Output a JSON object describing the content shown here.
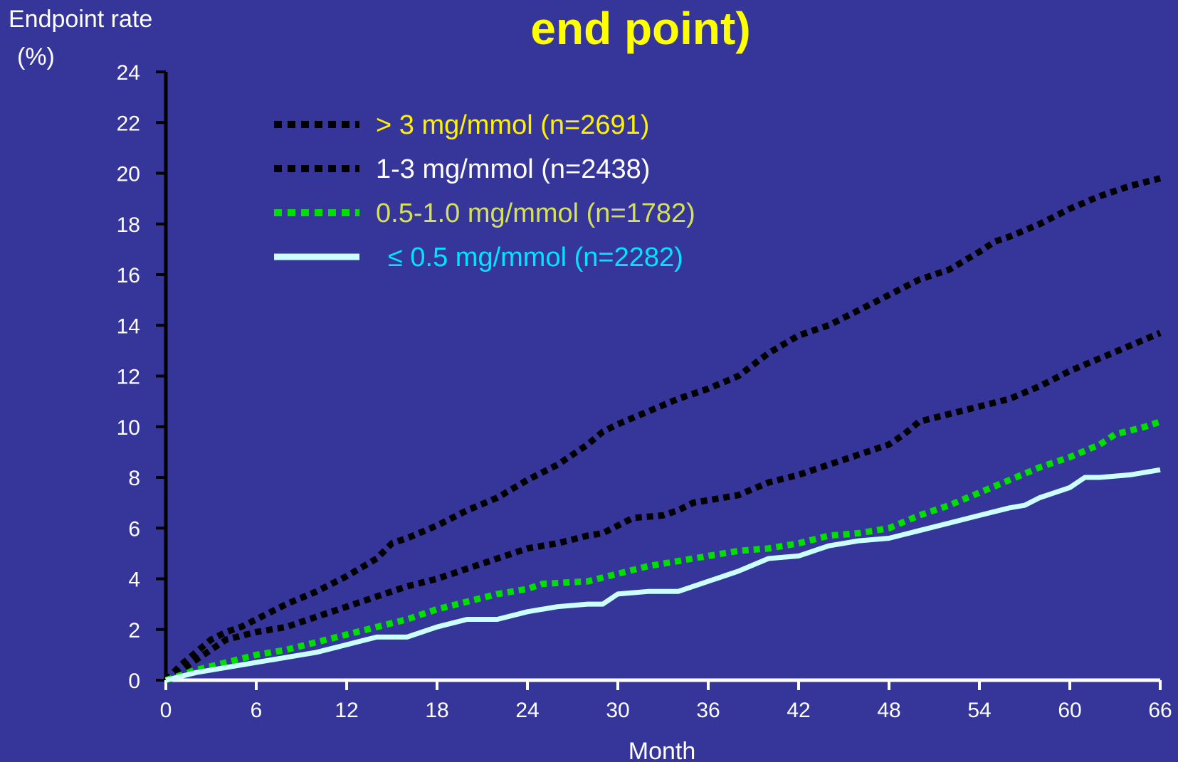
{
  "chart_data": {
    "type": "line",
    "title": "end point)",
    "ylabel_line1": "Endpoint rate",
    "ylabel_line2": "(%)",
    "xlabel": "Month",
    "xlim": [
      0,
      66
    ],
    "ylim": [
      0,
      24
    ],
    "x_ticks": [
      0,
      6,
      12,
      18,
      24,
      30,
      36,
      42,
      48,
      54,
      60,
      66
    ],
    "y_ticks": [
      0,
      2,
      4,
      6,
      8,
      10,
      12,
      14,
      16,
      18,
      20,
      22,
      24
    ],
    "grid": false,
    "legend_position": "top-left",
    "series": [
      {
        "name": "> 3 mg/mmol (n=2691)",
        "color": "#000000",
        "label_color": "#FFF200",
        "style": "dotted",
        "points": [
          [
            0,
            0
          ],
          [
            1,
            0.6
          ],
          [
            2,
            1.1
          ],
          [
            3,
            1.6
          ],
          [
            4,
            1.9
          ],
          [
            5,
            2.1
          ],
          [
            6,
            2.4
          ],
          [
            8,
            3.0
          ],
          [
            10,
            3.5
          ],
          [
            12,
            4.1
          ],
          [
            14,
            4.8
          ],
          [
            15,
            5.4
          ],
          [
            16,
            5.6
          ],
          [
            18,
            6.1
          ],
          [
            20,
            6.7
          ],
          [
            22,
            7.2
          ],
          [
            24,
            7.9
          ],
          [
            26,
            8.5
          ],
          [
            28,
            9.3
          ],
          [
            29,
            9.8
          ],
          [
            30,
            10.1
          ],
          [
            32,
            10.6
          ],
          [
            34,
            11.1
          ],
          [
            36,
            11.5
          ],
          [
            38,
            12.0
          ],
          [
            40,
            12.9
          ],
          [
            42,
            13.6
          ],
          [
            44,
            14.0
          ],
          [
            46,
            14.6
          ],
          [
            48,
            15.2
          ],
          [
            50,
            15.8
          ],
          [
            52,
            16.2
          ],
          [
            54,
            16.9
          ],
          [
            55,
            17.3
          ],
          [
            56,
            17.5
          ],
          [
            58,
            18.0
          ],
          [
            60,
            18.6
          ],
          [
            62,
            19.1
          ],
          [
            64,
            19.5
          ],
          [
            66,
            19.8
          ]
        ]
      },
      {
        "name": "1-3 mg/mmol (n=2438)",
        "color": "#000000",
        "label_color": "#FFFFFF",
        "style": "dotted",
        "points": [
          [
            0,
            0
          ],
          [
            2,
            0.8
          ],
          [
            4,
            1.6
          ],
          [
            6,
            1.9
          ],
          [
            8,
            2.1
          ],
          [
            10,
            2.5
          ],
          [
            12,
            2.9
          ],
          [
            14,
            3.3
          ],
          [
            16,
            3.7
          ],
          [
            18,
            4.0
          ],
          [
            20,
            4.4
          ],
          [
            22,
            4.8
          ],
          [
            24,
            5.2
          ],
          [
            26,
            5.4
          ],
          [
            28,
            5.7
          ],
          [
            29,
            5.8
          ],
          [
            30,
            6.1
          ],
          [
            31,
            6.4
          ],
          [
            33,
            6.5
          ],
          [
            34,
            6.7
          ],
          [
            35,
            7.0
          ],
          [
            36,
            7.1
          ],
          [
            38,
            7.3
          ],
          [
            40,
            7.8
          ],
          [
            42,
            8.1
          ],
          [
            44,
            8.5
          ],
          [
            46,
            8.9
          ],
          [
            48,
            9.3
          ],
          [
            49,
            9.7
          ],
          [
            50,
            10.2
          ],
          [
            52,
            10.5
          ],
          [
            54,
            10.8
          ],
          [
            56,
            11.1
          ],
          [
            58,
            11.6
          ],
          [
            60,
            12.2
          ],
          [
            62,
            12.7
          ],
          [
            64,
            13.2
          ],
          [
            66,
            13.7
          ]
        ]
      },
      {
        "name": "0.5-1.0 mg/mmol (n=1782)",
        "color": "#00E000",
        "label_color": "#D4E157",
        "style": "dotted",
        "points": [
          [
            0,
            0
          ],
          [
            2,
            0.4
          ],
          [
            4,
            0.7
          ],
          [
            6,
            1.0
          ],
          [
            8,
            1.2
          ],
          [
            10,
            1.5
          ],
          [
            12,
            1.8
          ],
          [
            14,
            2.1
          ],
          [
            16,
            2.4
          ],
          [
            18,
            2.8
          ],
          [
            20,
            3.1
          ],
          [
            22,
            3.4
          ],
          [
            24,
            3.6
          ],
          [
            25,
            3.8
          ],
          [
            28,
            3.9
          ],
          [
            30,
            4.2
          ],
          [
            32,
            4.5
          ],
          [
            34,
            4.7
          ],
          [
            36,
            4.9
          ],
          [
            38,
            5.1
          ],
          [
            40,
            5.2
          ],
          [
            42,
            5.4
          ],
          [
            44,
            5.7
          ],
          [
            46,
            5.8
          ],
          [
            48,
            6.0
          ],
          [
            50,
            6.5
          ],
          [
            52,
            6.9
          ],
          [
            54,
            7.4
          ],
          [
            56,
            7.9
          ],
          [
            58,
            8.4
          ],
          [
            60,
            8.8
          ],
          [
            62,
            9.3
          ],
          [
            63,
            9.7
          ],
          [
            65,
            10.0
          ],
          [
            66,
            10.2
          ]
        ]
      },
      {
        "name": "≤ 0.5 mg/mmol (n=2282)",
        "color": "#CCFFFF",
        "label_color": "#00E5FF",
        "style": "solid",
        "points": [
          [
            0,
            0
          ],
          [
            2,
            0.3
          ],
          [
            4,
            0.5
          ],
          [
            6,
            0.7
          ],
          [
            8,
            0.9
          ],
          [
            10,
            1.1
          ],
          [
            12,
            1.4
          ],
          [
            14,
            1.7
          ],
          [
            16,
            1.7
          ],
          [
            18,
            2.1
          ],
          [
            20,
            2.4
          ],
          [
            22,
            2.4
          ],
          [
            24,
            2.7
          ],
          [
            26,
            2.9
          ],
          [
            28,
            3.0
          ],
          [
            29,
            3.0
          ],
          [
            30,
            3.4
          ],
          [
            32,
            3.5
          ],
          [
            34,
            3.5
          ],
          [
            36,
            3.9
          ],
          [
            38,
            4.3
          ],
          [
            40,
            4.8
          ],
          [
            42,
            4.9
          ],
          [
            44,
            5.3
          ],
          [
            46,
            5.5
          ],
          [
            48,
            5.6
          ],
          [
            50,
            5.9
          ],
          [
            52,
            6.2
          ],
          [
            54,
            6.5
          ],
          [
            56,
            6.8
          ],
          [
            57,
            6.9
          ],
          [
            58,
            7.2
          ],
          [
            59,
            7.4
          ],
          [
            60,
            7.6
          ],
          [
            61,
            8.0
          ],
          [
            62,
            8.0
          ],
          [
            64,
            8.1
          ],
          [
            66,
            8.3
          ]
        ]
      }
    ]
  }
}
